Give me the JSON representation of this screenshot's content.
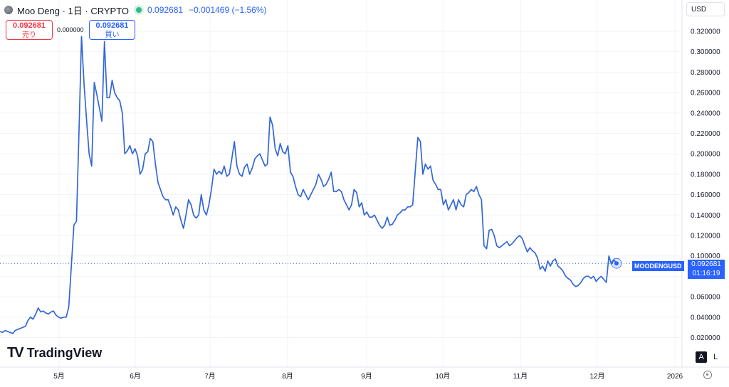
{
  "header": {
    "title": "Moo Deng · 1日 · CRYPTO",
    "last": "0.092681",
    "change": "−0.001469 (−1.56%)"
  },
  "trade": {
    "sell_price": "0.092681",
    "sell_label": "売り",
    "spread": "0.000000",
    "buy_price": "0.092681",
    "buy_label": "買い"
  },
  "currency": "USD",
  "logo": {
    "text": "TradingView"
  },
  "scale_buttons": [
    "A",
    "L"
  ],
  "tags": {
    "symbol": "MOODENGUSD",
    "price": "0.092681",
    "countdown": "01:16:19"
  },
  "colors": {
    "line": "#3367d6",
    "accent": "#2962ff",
    "sell": "#f23645",
    "up": "#2ebd85"
  },
  "chart_data": {
    "type": "line",
    "x_labels": [
      "5月",
      "6月",
      "7月",
      "8月",
      "9月",
      "10月",
      "11月",
      "12月",
      "2026"
    ],
    "y_ticks": [
      "0.020000",
      "0.040000",
      "0.060000",
      "0.080000",
      "0.100000",
      "0.120000",
      "0.140000",
      "0.160000",
      "0.180000",
      "0.200000",
      "0.220000",
      "0.240000",
      "0.260000",
      "0.280000",
      "0.300000",
      "0.320000"
    ],
    "ylim": [
      0.0,
      0.33
    ],
    "last_value": 0.092681,
    "grid": true,
    "start_date": "2025-04-01",
    "end_date": "2025-12-08",
    "values": [
      0.026,
      0.025,
      0.027,
      0.026,
      0.025,
      0.024,
      0.027,
      0.028,
      0.029,
      0.03,
      0.031,
      0.037,
      0.04,
      0.038,
      0.043,
      0.049,
      0.045,
      0.046,
      0.044,
      0.043,
      0.045,
      0.046,
      0.042,
      0.04,
      0.039,
      0.04,
      0.04,
      0.05,
      0.09,
      0.13,
      0.134,
      0.22,
      0.315,
      0.268,
      0.232,
      0.2,
      0.188,
      0.27,
      0.258,
      0.245,
      0.232,
      0.31,
      0.255,
      0.255,
      0.272,
      0.26,
      0.255,
      0.252,
      0.24,
      0.2,
      0.203,
      0.208,
      0.2,
      0.205,
      0.198,
      0.18,
      0.185,
      0.2,
      0.202,
      0.215,
      0.212,
      0.19,
      0.172,
      0.165,
      0.158,
      0.155,
      0.155,
      0.148,
      0.14,
      0.148,
      0.145,
      0.135,
      0.127,
      0.14,
      0.155,
      0.15,
      0.14,
      0.137,
      0.14,
      0.16,
      0.145,
      0.14,
      0.15,
      0.165,
      0.185,
      0.18,
      0.183,
      0.18,
      0.188,
      0.178,
      0.18,
      0.195,
      0.212,
      0.188,
      0.18,
      0.178,
      0.187,
      0.19,
      0.18,
      0.186,
      0.195,
      0.198,
      0.2,
      0.194,
      0.188,
      0.19,
      0.236,
      0.228,
      0.205,
      0.198,
      0.21,
      0.202,
      0.2,
      0.208,
      0.182,
      0.178,
      0.168,
      0.16,
      0.158,
      0.165,
      0.16,
      0.155,
      0.16,
      0.165,
      0.17,
      0.18,
      0.175,
      0.168,
      0.17,
      0.175,
      0.182,
      0.163,
      0.163,
      0.165,
      0.163,
      0.155,
      0.15,
      0.145,
      0.15,
      0.165,
      0.162,
      0.148,
      0.152,
      0.14,
      0.143,
      0.138,
      0.138,
      0.14,
      0.135,
      0.13,
      0.127,
      0.13,
      0.138,
      0.13,
      0.131,
      0.135,
      0.14,
      0.142,
      0.145,
      0.145,
      0.148,
      0.148,
      0.15,
      0.183,
      0.216,
      0.212,
      0.18,
      0.19,
      0.185,
      0.188,
      0.174,
      0.17,
      0.165,
      0.165,
      0.15,
      0.155,
      0.145,
      0.15,
      0.155,
      0.145,
      0.155,
      0.15,
      0.148,
      0.16,
      0.162,
      0.165,
      0.163,
      0.168,
      0.16,
      0.155,
      0.11,
      0.107,
      0.125,
      0.126,
      0.12,
      0.11,
      0.108,
      0.11,
      0.112,
      0.114,
      0.11,
      0.112,
      0.115,
      0.118,
      0.12,
      0.117,
      0.11,
      0.104,
      0.108,
      0.105,
      0.103,
      0.098,
      0.087,
      0.09,
      0.085,
      0.095,
      0.09,
      0.095,
      0.097,
      0.09,
      0.088,
      0.085,
      0.08,
      0.078,
      0.076,
      0.072,
      0.07,
      0.071,
      0.074,
      0.078,
      0.08,
      0.08,
      0.078,
      0.08,
      0.075,
      0.078,
      0.08,
      0.077,
      0.074,
      0.1,
      0.092,
      0.096,
      0.0927
    ]
  }
}
